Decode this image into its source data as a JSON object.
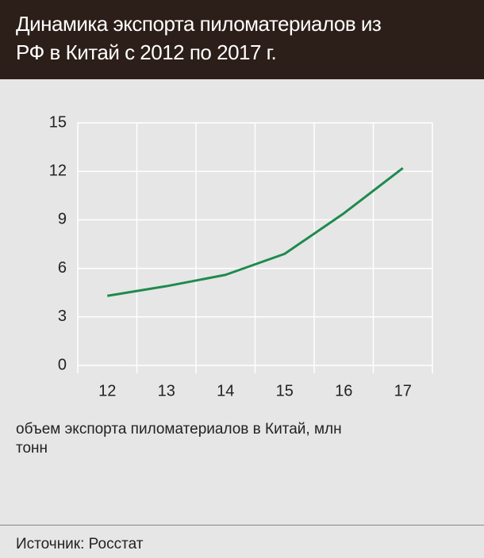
{
  "chart_data": {
    "type": "line",
    "title": "Динамика экспорта пиломатериалов из РФ в Китай с 2012 по 2017 г.",
    "categories": [
      "12",
      "13",
      "14",
      "15",
      "16",
      "17"
    ],
    "series": [
      {
        "name": "объем экспорта пиломатериалов в Китай, млн тонн",
        "color": "#1f8a4e",
        "values": [
          4.3,
          4.9,
          5.6,
          6.9,
          9.4,
          12.2
        ]
      }
    ],
    "ylim": [
      0,
      15
    ],
    "yticks": [
      0,
      3,
      6,
      9,
      12,
      15
    ],
    "grid": true,
    "source": "Источник: Росстат"
  }
}
